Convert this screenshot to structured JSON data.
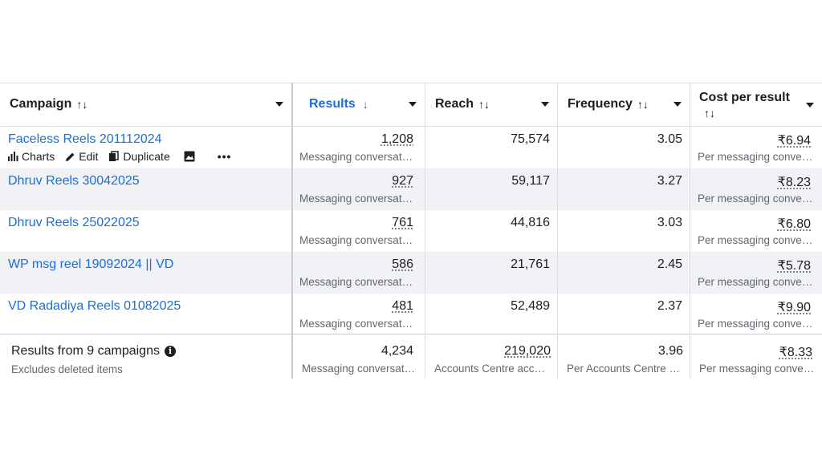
{
  "columns": {
    "campaign": {
      "label": "Campaign",
      "sort": "↑↓"
    },
    "results": {
      "label": "Results",
      "sort": "↓"
    },
    "reach": {
      "label": "Reach",
      "sort": "↑↓"
    },
    "frequency": {
      "label": "Frequency",
      "sort": "↑↓"
    },
    "cost": {
      "label": "Cost per result",
      "sort": "↑↓"
    }
  },
  "actions": {
    "charts": "Charts",
    "edit": "Edit",
    "duplicate": "Duplicate",
    "more": "•••"
  },
  "rows": [
    {
      "name": "Faceless Reels 201112024",
      "results": "1,208",
      "results_sub": "Messaging conversat…",
      "reach": "75,574",
      "frequency": "3.05",
      "cost": "₹6.94",
      "cost_sub": "Per messaging conve…"
    },
    {
      "name": "Dhruv Reels 30042025",
      "results": "927",
      "results_sub": "Messaging conversat…",
      "reach": "59,117",
      "frequency": "3.27",
      "cost": "₹8.23",
      "cost_sub": "Per messaging conve…"
    },
    {
      "name": "Dhruv Reels 25022025",
      "results": "761",
      "results_sub": "Messaging conversat…",
      "reach": "44,816",
      "frequency": "3.03",
      "cost": "₹6.80",
      "cost_sub": "Per messaging conve…"
    },
    {
      "name": "WP msg reel 19092024 || VD",
      "results": "586",
      "results_sub": "Messaging conversat…",
      "reach": "21,761",
      "frequency": "2.45",
      "cost": "₹5.78",
      "cost_sub": "Per messaging conve…"
    },
    {
      "name": "VD Radadiya Reels 01082025",
      "results": "481",
      "results_sub": "Messaging conversat…",
      "reach": "52,489",
      "frequency": "2.37",
      "cost": "₹9.90",
      "cost_sub": "Per messaging conve…"
    }
  ],
  "footer": {
    "title": "Results from 9 campaigns",
    "subtitle": "Excludes deleted items",
    "results": "4,234",
    "results_sub": "Messaging conversat…",
    "reach": "219,020",
    "reach_sub": "Accounts Centre acco…",
    "frequency": "3.96",
    "frequency_sub": "Per Accounts Centre …",
    "cost": "₹8.33",
    "cost_sub": "Per messaging conve…"
  },
  "colors": {
    "link": "#1a6ed8",
    "active_sort": "#1a6ed8",
    "alt_row": "#f0f2f5",
    "border": "#dadde1"
  }
}
